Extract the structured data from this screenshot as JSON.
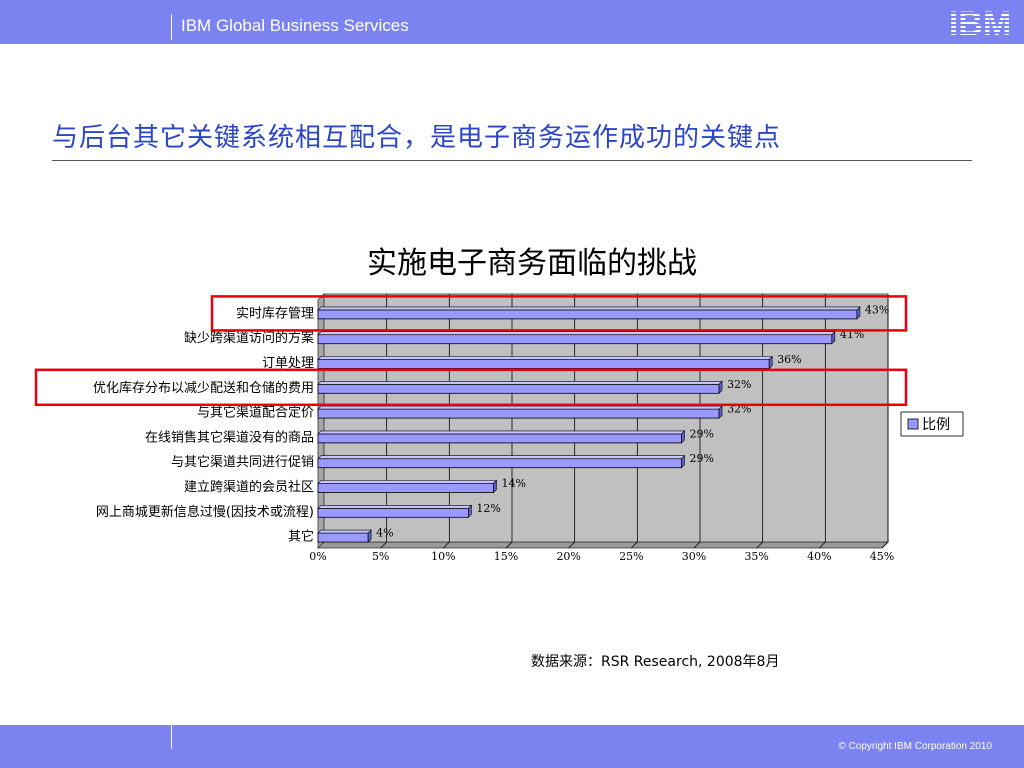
{
  "header": {
    "brand": "IBM Global Business Services",
    "logo_text": "IBM"
  },
  "headline": "与后台其它关键系统相互配合，是电子商务运作成功的关键点",
  "source_note": "数据来源：RSR Research, 2008年8月",
  "footer": {
    "copyright": "© Copyright IBM Corporation 2010"
  },
  "colors": {
    "bar_fill": "#9999ff",
    "plot_bg": "#c0c0c0",
    "highlight": "#e8000b",
    "band": "#7b83f0",
    "headline": "#2b46c7"
  },
  "chart_data": {
    "type": "bar",
    "orientation": "horizontal",
    "title": "实施电子商务面临的挑战",
    "categories": [
      "实时库存管理",
      "缺少跨渠道访问的方案",
      "订单处理",
      "优化库存分布以减少配送和仓储的费用",
      "与其它渠道配合定价",
      "在线销售其它渠道没有的商品",
      "与其它渠道共同进行促销",
      "建立跨渠道的会员社区",
      "网上商城更新信息过慢(因技术或流程)",
      "其它"
    ],
    "series": [
      {
        "name": "比例",
        "values": [
          43,
          41,
          36,
          32,
          32,
          29,
          29,
          14,
          12,
          4
        ]
      }
    ],
    "data_labels": [
      "43%",
      "41%",
      "36%",
      "32%",
      "32%",
      "29%",
      "29%",
      "14%",
      "12%",
      "4%"
    ],
    "x_ticks": [
      "0%",
      "5%",
      "10%",
      "15%",
      "20%",
      "25%",
      "30%",
      "35%",
      "40%",
      "45%"
    ],
    "xlim": [
      0,
      45
    ],
    "grid": true,
    "legend_position": "right",
    "highlighted_categories": [
      "实时库存管理",
      "优化库存分布以减少配送和仓储的费用"
    ]
  }
}
